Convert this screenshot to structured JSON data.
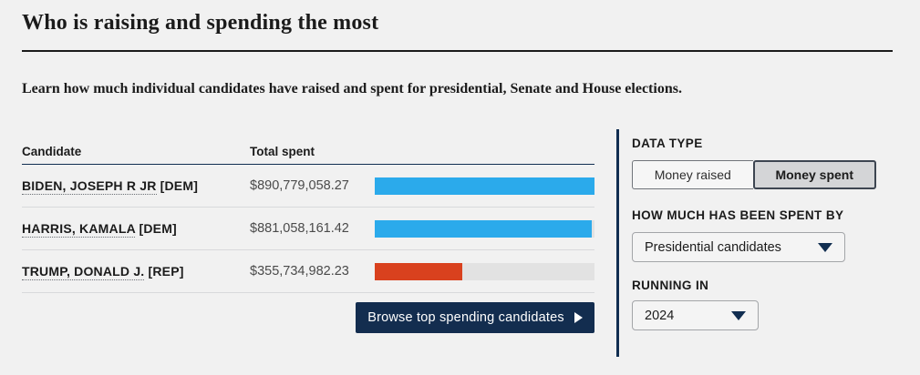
{
  "page": {
    "title": "Who is raising and spending the most",
    "intro": "Learn how much individual candidates have raised and spent for presidential, Senate and House elections."
  },
  "table": {
    "headers": {
      "candidate": "Candidate",
      "total_spent": "Total spent"
    },
    "rows": [
      {
        "name": "BIDEN, JOSEPH R JR",
        "party_tag": "[DEM]",
        "amount": "$890,779,058.27",
        "bar_pct": 100,
        "bar_color": "#2baaeb"
      },
      {
        "name": "HARRIS, KAMALA",
        "party_tag": "[DEM]",
        "amount": "$881,058,161.42",
        "bar_pct": 98.9,
        "bar_color": "#2baaeb"
      },
      {
        "name": "TRUMP, DONALD J.",
        "party_tag": "[REP]",
        "amount": "$355,734,982.23",
        "bar_pct": 39.9,
        "bar_color": "#d9411e"
      }
    ]
  },
  "browse_button": {
    "label": "Browse top spending candidates"
  },
  "sidebar": {
    "data_type": {
      "label": "DATA TYPE",
      "options": [
        {
          "label": "Money raised",
          "selected": false
        },
        {
          "label": "Money spent",
          "selected": true
        }
      ]
    },
    "spent_by": {
      "label": "HOW MUCH HAS BEEN SPENT BY",
      "value": "Presidential candidates"
    },
    "running_in": {
      "label": "RUNNING IN",
      "value": "2024"
    }
  },
  "chart_data": {
    "type": "bar",
    "orientation": "horizontal",
    "title": "Total spent",
    "categories": [
      "BIDEN, JOSEPH R JR [DEM]",
      "HARRIS, KAMALA [DEM]",
      "TRUMP, DONALD J. [REP]"
    ],
    "values": [
      890779058.27,
      881058161.42,
      355734982.23
    ],
    "bar_colors": [
      "#2baaeb",
      "#2baaeb",
      "#d9411e"
    ],
    "xlim": [
      0,
      890779058.27
    ],
    "track_color": "#e2e2e2"
  },
  "colors": {
    "background": "#f1f1f1",
    "navy_accent": "#112e51",
    "button_bg": "#132d4f",
    "dem_bar": "#2baaeb",
    "rep_bar": "#d9411e",
    "bar_track": "#e2e2e2"
  }
}
